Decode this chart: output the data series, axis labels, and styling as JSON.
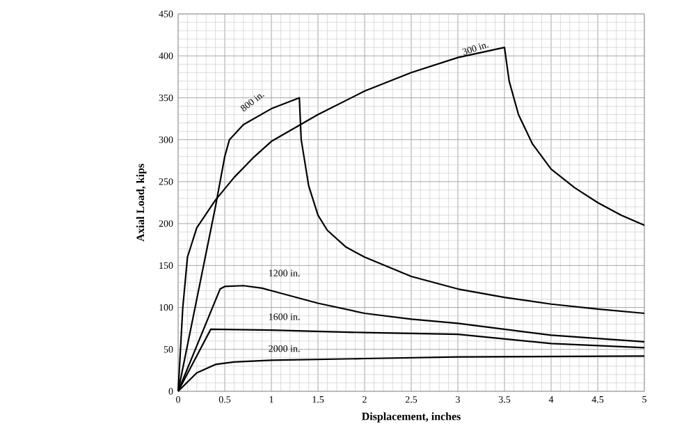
{
  "chart_data": {
    "type": "line",
    "xlabel": "Displacement, inches",
    "ylabel": "Axial Load, kips",
    "xlim": [
      0,
      5
    ],
    "ylim": [
      0,
      450
    ],
    "xticks": [
      0,
      0.5,
      1,
      1.5,
      2,
      2.5,
      3,
      3.5,
      4,
      4.5,
      5
    ],
    "yticks": [
      0,
      50,
      100,
      150,
      200,
      250,
      300,
      350,
      400,
      450
    ],
    "grid": true,
    "marker": "none",
    "line_style": "solid",
    "series": [
      {
        "color": "#000000",
        "x": [
          0,
          0.05,
          0.1,
          0.2,
          0.4,
          0.6,
          0.8,
          1,
          1.5,
          2,
          2.5,
          3,
          3.5,
          3.55,
          3.65,
          3.8,
          4,
          4.25,
          4.5,
          4.75,
          5
        ],
        "values": [
          0,
          100,
          160,
          195,
          228,
          255,
          278,
          298,
          330,
          358,
          380,
          398,
          410,
          370,
          330,
          295,
          265,
          243,
          225,
          210,
          198
        ]
      },
      {
        "color": "#000000",
        "x": [
          0,
          0.4,
          0.5,
          0.55,
          0.7,
          1,
          1.3,
          1.32,
          1.4,
          1.5,
          1.6,
          1.8,
          2,
          2.5,
          3,
          3.5,
          4,
          4.5,
          5
        ],
        "values": [
          0,
          220,
          280,
          300,
          318,
          337,
          350,
          300,
          245,
          210,
          192,
          172,
          160,
          137,
          122,
          112,
          104,
          98,
          93
        ]
      },
      {
        "color": "#000000",
        "x": [
          0,
          0.45,
          0.5,
          0.7,
          0.9,
          1,
          1.5,
          2,
          2.5,
          3,
          4,
          5
        ],
        "values": [
          0,
          122,
          125,
          126,
          123,
          120,
          105,
          93,
          86,
          81,
          67,
          59
        ]
      },
      {
        "color": "#000000",
        "x": [
          0,
          0.35,
          1,
          2,
          3,
          4,
          5
        ],
        "values": [
          0,
          74,
          73,
          70,
          68,
          57,
          52
        ]
      },
      {
        "color": "#000000",
        "x": [
          0,
          0.2,
          0.4,
          0.6,
          1,
          2,
          3,
          5
        ],
        "values": [
          0,
          22,
          32,
          35,
          37,
          39,
          41,
          42
        ]
      }
    ],
    "annotations": [
      "300 in.",
      "800 in.",
      "1200 in.",
      "1600 in.",
      "2000 in."
    ]
  }
}
